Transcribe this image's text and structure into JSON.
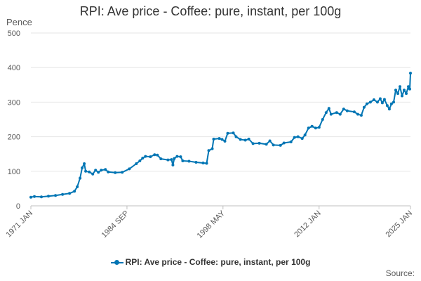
{
  "chart_data": {
    "type": "line",
    "title": "RPI: Ave price - Coffee: pure, instant, per 100g",
    "ylabel": "Pence",
    "xlabel": "",
    "ylim": [
      0,
      500
    ],
    "yticks": [
      "0",
      "100",
      "200",
      "300",
      "400",
      "500"
    ],
    "xlim": [
      1971.0,
      2025.0
    ],
    "xticks": [
      {
        "label": "1971 JAN",
        "value": 1971.0
      },
      {
        "label": "1984 SEP",
        "value": 1984.67
      },
      {
        "label": "1998 MAY",
        "value": 1998.33
      },
      {
        "label": "2012 JAN",
        "value": 2012.0
      },
      {
        "label": "2025 JAN",
        "value": 2025.0
      }
    ],
    "grid": "horizontal",
    "legend_position": "bottom",
    "color": "#0075b4",
    "series": [
      {
        "name": "RPI: Ave price - Coffee: pure, instant, per 100g",
        "points": [
          [
            1971.0,
            25
          ],
          [
            1971.5,
            27
          ],
          [
            1972.5,
            26
          ],
          [
            1973.5,
            28
          ],
          [
            1974.5,
            30
          ],
          [
            1975.5,
            33
          ],
          [
            1976.5,
            36
          ],
          [
            1977.2,
            42
          ],
          [
            1977.6,
            55
          ],
          [
            1978.0,
            80
          ],
          [
            1978.3,
            110
          ],
          [
            1978.6,
            122
          ],
          [
            1978.8,
            100
          ],
          [
            1979.3,
            98
          ],
          [
            1979.8,
            92
          ],
          [
            1980.2,
            103
          ],
          [
            1980.6,
            97
          ],
          [
            1981.0,
            103
          ],
          [
            1981.6,
            105
          ],
          [
            1982.0,
            98
          ],
          [
            1983.0,
            96
          ],
          [
            1984.0,
            97
          ],
          [
            1985.0,
            107
          ],
          [
            1986.0,
            122
          ],
          [
            1986.5,
            130
          ],
          [
            1986.9,
            138
          ],
          [
            1987.3,
            143
          ],
          [
            1988.0,
            142
          ],
          [
            1988.6,
            148
          ],
          [
            1989.0,
            147
          ],
          [
            1989.5,
            136
          ],
          [
            1990.5,
            133
          ],
          [
            1991.0,
            134
          ],
          [
            1991.2,
            118
          ],
          [
            1991.4,
            137
          ],
          [
            1991.8,
            143
          ],
          [
            1992.3,
            142
          ],
          [
            1992.6,
            130
          ],
          [
            1993.5,
            129
          ],
          [
            1994.5,
            126
          ],
          [
            1995.5,
            124
          ],
          [
            1996.0,
            123
          ],
          [
            1996.3,
            160
          ],
          [
            1996.8,
            165
          ],
          [
            1997.0,
            193
          ],
          [
            1997.8,
            195
          ],
          [
            1998.2,
            192
          ],
          [
            1998.6,
            187
          ],
          [
            1999.0,
            210
          ],
          [
            1999.8,
            211
          ],
          [
            2000.2,
            200
          ],
          [
            2000.8,
            192
          ],
          [
            2001.5,
            190
          ],
          [
            2002.0,
            193
          ],
          [
            2002.6,
            180
          ],
          [
            2003.5,
            181
          ],
          [
            2004.5,
            178
          ],
          [
            2005.0,
            188
          ],
          [
            2005.5,
            176
          ],
          [
            2006.5,
            175
          ],
          [
            2007.0,
            182
          ],
          [
            2008.0,
            185
          ],
          [
            2008.5,
            198
          ],
          [
            2009.0,
            200
          ],
          [
            2009.6,
            195
          ],
          [
            2010.0,
            205
          ],
          [
            2010.5,
            225
          ],
          [
            2011.0,
            230
          ],
          [
            2011.5,
            225
          ],
          [
            2012.0,
            227
          ],
          [
            2012.5,
            250
          ],
          [
            2013.0,
            270
          ],
          [
            2013.4,
            282
          ],
          [
            2013.7,
            265
          ],
          [
            2014.5,
            270
          ],
          [
            2015.0,
            265
          ],
          [
            2015.5,
            280
          ],
          [
            2016.0,
            275
          ],
          [
            2017.0,
            272
          ],
          [
            2017.5,
            265
          ],
          [
            2018.0,
            262
          ],
          [
            2018.4,
            285
          ],
          [
            2018.8,
            295
          ],
          [
            2019.3,
            300
          ],
          [
            2019.8,
            307
          ],
          [
            2020.3,
            300
          ],
          [
            2020.7,
            310
          ],
          [
            2021.0,
            298
          ],
          [
            2021.3,
            308
          ],
          [
            2021.7,
            290
          ],
          [
            2022.0,
            280
          ],
          [
            2022.3,
            295
          ],
          [
            2022.6,
            300
          ],
          [
            2022.9,
            335
          ],
          [
            2023.2,
            325
          ],
          [
            2023.5,
            345
          ],
          [
            2023.8,
            318
          ],
          [
            2024.1,
            335
          ],
          [
            2024.4,
            325
          ],
          [
            2024.7,
            345
          ],
          [
            2024.9,
            338
          ],
          [
            2025.0,
            384
          ]
        ]
      }
    ],
    "source": "Source:"
  }
}
